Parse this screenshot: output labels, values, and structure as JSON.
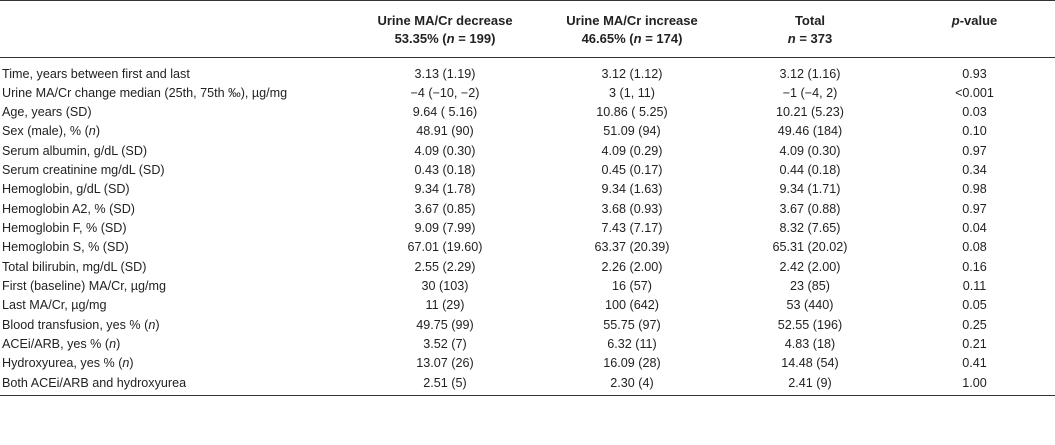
{
  "table": {
    "headers": [
      {
        "line1": "",
        "line2": ""
      },
      {
        "line1": "Urine MA/Cr decrease",
        "line2": "53.35% (n = 199)"
      },
      {
        "line1": "Urine MA/Cr increase",
        "line2": "46.65% (n = 174)"
      },
      {
        "line1": "Total",
        "line2": "n = 373"
      },
      {
        "line1": "p-value",
        "line2": ""
      }
    ],
    "rows": [
      [
        "Time, years between first and last",
        "3.13 (1.19)",
        "3.12 (1.12)",
        "3.12 (1.16)",
        "0.93"
      ],
      [
        "Urine MA/Cr change median (25th, 75th ‰), µg/mg",
        "−4 (−10, −2)",
        "3 (1, 11)",
        "−1 (−4, 2)",
        "<0.001"
      ],
      [
        "Age, years (SD)",
        "9.64 ( 5.16)",
        "10.86 ( 5.25)",
        "10.21 (5.23)",
        "0.03"
      ],
      [
        "Sex (male), % (n)",
        "48.91 (90)",
        "51.09 (94)",
        "49.46 (184)",
        "0.10"
      ],
      [
        "Serum albumin, g/dL (SD)",
        "4.09 (0.30)",
        "4.09 (0.29)",
        "4.09 (0.30)",
        "0.97"
      ],
      [
        "Serum creatinine mg/dL (SD)",
        "0.43 (0.18)",
        "0.45 (0.17)",
        "0.44 (0.18)",
        "0.34"
      ],
      [
        "Hemoglobin, g/dL (SD)",
        "9.34 (1.78)",
        "9.34 (1.63)",
        "9.34 (1.71)",
        "0.98"
      ],
      [
        "Hemoglobin A2, % (SD)",
        "3.67 (0.85)",
        "3.68 (0.93)",
        "3.67 (0.88)",
        "0.97"
      ],
      [
        "Hemoglobin F, % (SD)",
        "9.09 (7.99)",
        "7.43 (7.17)",
        "8.32 (7.65)",
        "0.04"
      ],
      [
        "Hemoglobin S, % (SD)",
        "67.01 (19.60)",
        "63.37 (20.39)",
        "65.31 (20.02)",
        "0.08"
      ],
      [
        "Total bilirubin, mg/dL (SD)",
        "2.55 (2.29)",
        "2.26 (2.00)",
        "2.42 (2.00)",
        "0.16"
      ],
      [
        "First (baseline) MA/Cr, µg/mg",
        "30 (103)",
        "16 (57)",
        "23 (85)",
        "0.11"
      ],
      [
        "Last MA/Cr, µg/mg",
        "11 (29)",
        "100 (642)",
        "53 (440)",
        "0.05"
      ],
      [
        "Blood transfusion, yes % (n)",
        "49.75 (99)",
        "55.75 (97)",
        "52.55 (196)",
        "0.25"
      ],
      [
        "ACEi/ARB, yes % (n)",
        "3.52 (7)",
        "6.32 (11)",
        "4.83 (18)",
        "0.21"
      ],
      [
        "Hydroxyurea, yes % (n)",
        "13.07 (26)",
        "16.09 (28)",
        "14.48 (54)",
        "0.41"
      ],
      [
        "Both ACEi/ARB and hydroxyurea",
        "2.51 (5)",
        "2.30 (4)",
        "2.41 (9)",
        "1.00"
      ]
    ]
  }
}
